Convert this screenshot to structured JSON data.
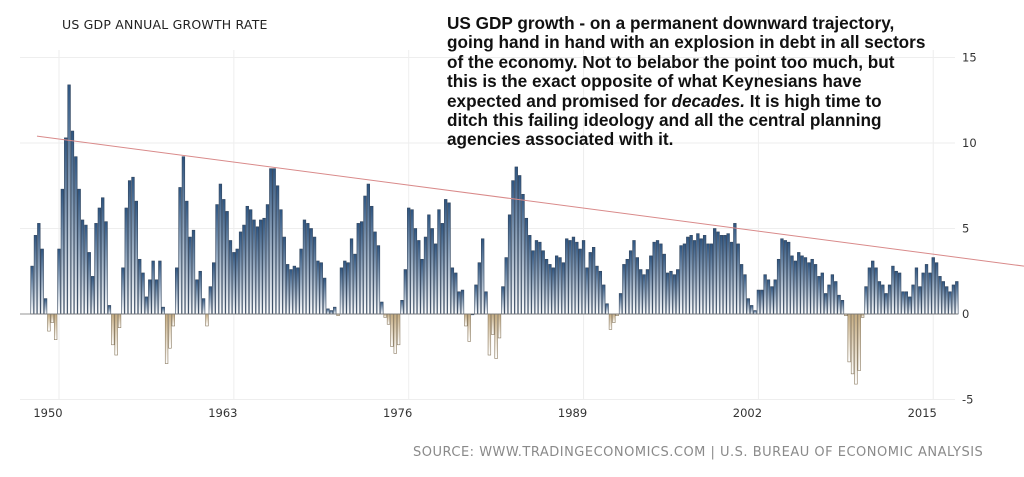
{
  "header": {
    "title": "US GDP ANNUAL GROWTH RATE"
  },
  "annotation": {
    "lines": [
      "US GDP growth - on a permanent downward trajectory,",
      "going hand in hand with an explosion in debt in all sectors",
      "of the economy. Not to belabor the point too much, but",
      "this is the exact opposite of what Keynesians have"
    ],
    "line5_before": "expected and promised for ",
    "line5_italic": "decades.",
    "line5_after": " It is high time to",
    "lines_end": [
      "ditch this failing ideology and all the central planning",
      "agencies associated with it."
    ]
  },
  "footer": {
    "source": "SOURCE: WWW.TRADINGECONOMICS.COM | U.S. BUREAU OF ECONOMIC ANALYSIS"
  },
  "colors": {
    "positive_bar": "#2d5480",
    "negative_bar": "#c4ab80",
    "bar_outline": "#333333",
    "trend_line": "#d98a8a",
    "grid": "#eeeeee"
  },
  "chart_data": {
    "type": "bar",
    "title": "US GDP ANNUAL GROWTH RATE",
    "frequency": "quarterly",
    "x_start": "1948 Q1",
    "x_end": "2016 Q4",
    "x_ticks": [
      "1950",
      "1963",
      "1976",
      "1989",
      "2002",
      "2015"
    ],
    "y_ticks": [
      "15",
      "10",
      "5",
      "0",
      "-5"
    ],
    "ylim": [
      -5,
      15
    ],
    "y_axis_side": "right",
    "grid": true,
    "values": [
      2.8,
      4.6,
      5.3,
      3.8,
      0.9,
      -1.0,
      -0.5,
      -1.5,
      3.8,
      7.3,
      10.3,
      13.4,
      10.7,
      9.2,
      7.3,
      5.5,
      5.2,
      3.6,
      2.2,
      5.3,
      6.2,
      6.8,
      5.4,
      0.5,
      -1.8,
      -2.4,
      -0.8,
      2.7,
      6.2,
      7.8,
      8.0,
      6.6,
      3.2,
      2.4,
      1.0,
      2.0,
      3.1,
      2.0,
      3.1,
      0.4,
      -2.9,
      -2.0,
      -0.7,
      2.7,
      7.4,
      9.2,
      6.6,
      4.5,
      4.9,
      2.0,
      2.5,
      0.9,
      -0.7,
      1.6,
      3.0,
      6.4,
      7.6,
      6.7,
      6.0,
      4.3,
      3.6,
      3.8,
      4.8,
      5.2,
      6.3,
      6.1,
      5.5,
      5.1,
      5.5,
      5.6,
      6.4,
      8.5,
      8.5,
      7.5,
      6.1,
      4.5,
      2.9,
      2.6,
      2.8,
      2.7,
      3.8,
      5.5,
      5.3,
      5.0,
      4.5,
      3.1,
      3.0,
      2.1,
      0.3,
      0.2,
      0.4,
      -0.1,
      2.7,
      3.1,
      3.0,
      4.4,
      3.5,
      5.3,
      5.4,
      6.9,
      7.6,
      6.3,
      4.8,
      4.0,
      0.7,
      -0.2,
      -0.6,
      -1.9,
      -2.3,
      -1.8,
      0.8,
      2.6,
      6.2,
      6.1,
      5.0,
      4.3,
      3.2,
      4.5,
      5.8,
      5.0,
      4.1,
      6.1,
      5.3,
      6.7,
      6.5,
      2.7,
      2.4,
      1.3,
      1.4,
      -0.7,
      -1.6,
      0.0,
      1.7,
      3.0,
      4.4,
      1.3,
      -2.4,
      -1.2,
      -2.6,
      -1.4,
      1.6,
      3.3,
      5.8,
      7.8,
      8.6,
      8.1,
      7.0,
      5.6,
      4.6,
      3.7,
      4.3,
      4.2,
      3.7,
      3.2,
      2.9,
      2.7,
      3.4,
      3.3,
      3.0,
      4.4,
      4.3,
      4.5,
      4.2,
      3.8,
      4.3,
      2.7,
      3.6,
      3.9,
      2.8,
      2.5,
      1.7,
      0.6,
      -0.9,
      -0.5,
      -0.1,
      1.2,
      2.9,
      3.2,
      3.7,
      4.3,
      3.3,
      2.6,
      2.3,
      2.6,
      3.4,
      4.2,
      4.3,
      4.1,
      3.5,
      2.4,
      2.5,
      2.3,
      2.6,
      4.0,
      4.1,
      4.5,
      4.6,
      4.3,
      4.7,
      4.4,
      4.6,
      4.1,
      4.1,
      5.0,
      4.8,
      4.6,
      4.6,
      4.7,
      4.2,
      5.3,
      4.1,
      2.9,
      2.3,
      0.9,
      0.5,
      0.2,
      1.4,
      1.4,
      2.3,
      2.0,
      1.6,
      2.0,
      3.2,
      4.4,
      4.3,
      4.2,
      3.4,
      3.1,
      3.6,
      3.4,
      3.3,
      3.0,
      3.2,
      2.9,
      2.2,
      2.4,
      1.2,
      1.7,
      2.3,
      1.9,
      1.1,
      0.8,
      -0.1,
      -2.8,
      -3.5,
      -4.1,
      -3.3,
      -0.2,
      1.6,
      2.7,
      3.1,
      2.7,
      1.9,
      1.7,
      1.2,
      1.7,
      2.8,
      2.5,
      2.4,
      1.3,
      1.3,
      1.0,
      1.7,
      2.7,
      1.6,
      2.4,
      2.9,
      2.4,
      3.3,
      3.0,
      2.2,
      1.9,
      1.6,
      1.3,
      1.7,
      1.9
    ],
    "trend_line": {
      "start_value": 10.4,
      "end_value": 2.8
    }
  }
}
